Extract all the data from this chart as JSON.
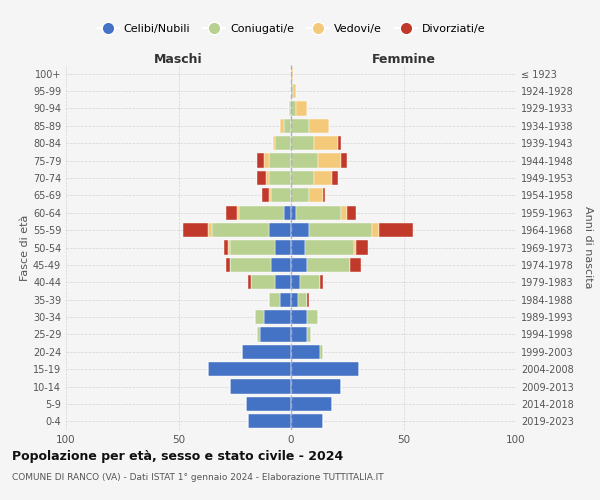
{
  "age_groups": [
    "0-4",
    "5-9",
    "10-14",
    "15-19",
    "20-24",
    "25-29",
    "30-34",
    "35-39",
    "40-44",
    "45-49",
    "50-54",
    "55-59",
    "60-64",
    "65-69",
    "70-74",
    "75-79",
    "80-84",
    "85-89",
    "90-94",
    "95-99",
    "100+"
  ],
  "birth_years": [
    "2019-2023",
    "2014-2018",
    "2009-2013",
    "2004-2008",
    "1999-2003",
    "1994-1998",
    "1989-1993",
    "1984-1988",
    "1979-1983",
    "1974-1978",
    "1969-1973",
    "1964-1968",
    "1959-1963",
    "1954-1958",
    "1949-1953",
    "1944-1948",
    "1939-1943",
    "1934-1938",
    "1929-1933",
    "1924-1928",
    "≤ 1923"
  ],
  "male": {
    "celibi": [
      19,
      20,
      27,
      37,
      22,
      14,
      12,
      5,
      7,
      9,
      7,
      10,
      3,
      0,
      0,
      0,
      0,
      0,
      0,
      0,
      0
    ],
    "coniugati": [
      0,
      0,
      0,
      0,
      0,
      1,
      4,
      5,
      11,
      18,
      20,
      25,
      20,
      9,
      10,
      10,
      7,
      3,
      1,
      0,
      0
    ],
    "vedovi": [
      0,
      0,
      0,
      0,
      0,
      0,
      0,
      0,
      0,
      0,
      1,
      2,
      1,
      1,
      1,
      2,
      1,
      2,
      0,
      0,
      0
    ],
    "divorziati": [
      0,
      0,
      0,
      0,
      0,
      0,
      0,
      0,
      1,
      2,
      2,
      11,
      5,
      3,
      4,
      3,
      0,
      0,
      0,
      0,
      0
    ]
  },
  "female": {
    "nubili": [
      14,
      18,
      22,
      30,
      13,
      7,
      7,
      3,
      4,
      7,
      6,
      8,
      2,
      0,
      0,
      0,
      0,
      0,
      0,
      0,
      0
    ],
    "coniugate": [
      0,
      0,
      0,
      0,
      1,
      2,
      5,
      4,
      9,
      19,
      22,
      28,
      20,
      8,
      10,
      12,
      10,
      8,
      2,
      1,
      0
    ],
    "vedove": [
      0,
      0,
      0,
      0,
      0,
      0,
      0,
      0,
      0,
      0,
      1,
      3,
      3,
      6,
      8,
      10,
      11,
      9,
      5,
      1,
      1
    ],
    "divorziate": [
      0,
      0,
      0,
      0,
      0,
      0,
      0,
      1,
      1,
      5,
      5,
      15,
      4,
      1,
      3,
      3,
      1,
      0,
      0,
      0,
      0
    ]
  },
  "colors": {
    "celibi_nubili": "#4472c4",
    "coniugati": "#b8d090",
    "vedovi": "#f5c97a",
    "divorziati": "#c0392b"
  },
  "xlim": 100,
  "title": "Popolazione per età, sesso e stato civile - 2024",
  "subtitle": "COMUNE DI RANCO (VA) - Dati ISTAT 1° gennaio 2024 - Elaborazione TUTTITALIA.IT",
  "ylabel_left": "Fasce di età",
  "ylabel_right": "Anni di nascita",
  "xlabel_left": "Maschi",
  "xlabel_right": "Femmine",
  "legend_labels": [
    "Celibi/Nubili",
    "Coniugati/e",
    "Vedovi/e",
    "Divorziati/e"
  ],
  "background_color": "#f5f5f5"
}
